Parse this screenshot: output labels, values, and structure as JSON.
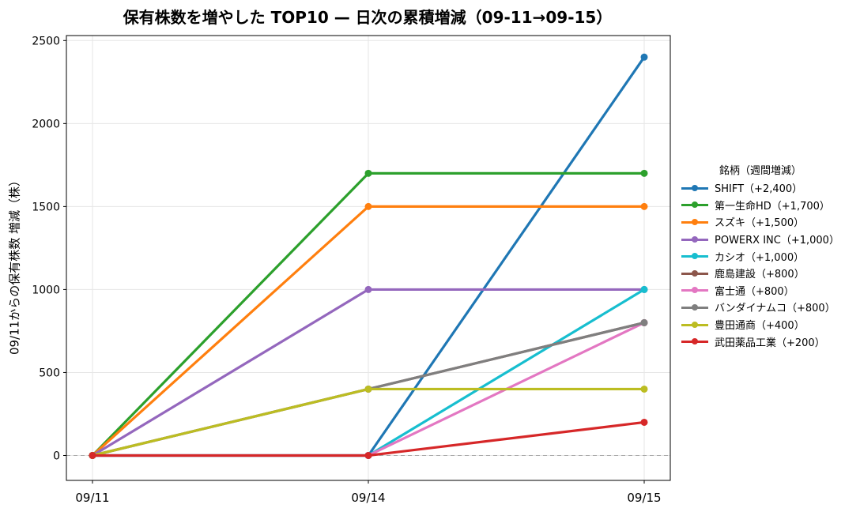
{
  "chart_data": {
    "type": "line",
    "title": "保有株数を増やした TOP10 — 日次の累積増減（09-11→09-15）",
    "xlabel": "",
    "ylabel": "09/11からの保有株数 増減（株）",
    "categories": [
      "09/11",
      "09/14",
      "09/15"
    ],
    "ylim": [
      -150,
      2530
    ],
    "yticks": [
      0,
      500,
      1000,
      1500,
      2000,
      2500
    ],
    "grid": true,
    "zero_line": true,
    "legend_title": "銘柄（週間増減）",
    "legend_position": "right",
    "series": [
      {
        "name": "SHIFT（+2,400）",
        "color": "#1f77b4",
        "values": [
          0,
          0,
          2400
        ]
      },
      {
        "name": "第一生命HD（+1,700）",
        "color": "#2ca02c",
        "values": [
          0,
          1700,
          1700
        ]
      },
      {
        "name": "スズキ（+1,500）",
        "color": "#ff7f0e",
        "values": [
          0,
          1500,
          1500
        ]
      },
      {
        "name": "POWERX INC（+1,000）",
        "color": "#9467bd",
        "values": [
          0,
          1000,
          1000
        ]
      },
      {
        "name": "カシオ（+1,000）",
        "color": "#17becf",
        "values": [
          0,
          0,
          1000
        ]
      },
      {
        "name": "鹿島建設（+800）",
        "color": "#8c564b",
        "values": [
          0,
          400,
          800
        ]
      },
      {
        "name": "富士通（+800）",
        "color": "#e377c2",
        "values": [
          0,
          0,
          800
        ]
      },
      {
        "name": "バンダイナムコ（+800）",
        "color": "#7f7f7f",
        "values": [
          0,
          400,
          800
        ]
      },
      {
        "name": "豊田通商（+400）",
        "color": "#bcbd22",
        "values": [
          0,
          400,
          400
        ]
      },
      {
        "name": "武田薬品工業（+200）",
        "color": "#d62728",
        "values": [
          0,
          0,
          200
        ]
      }
    ]
  }
}
